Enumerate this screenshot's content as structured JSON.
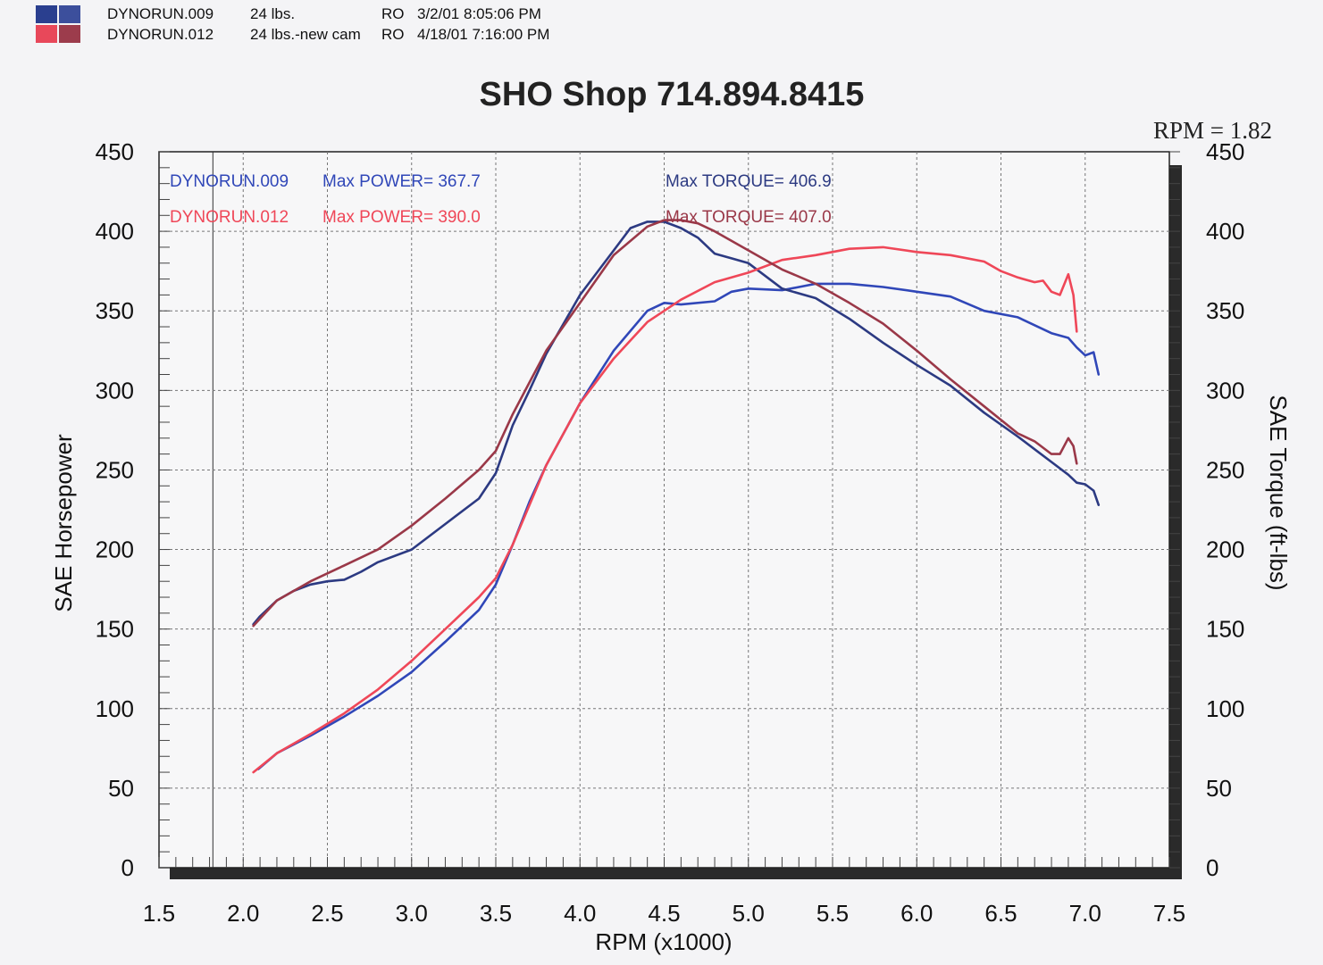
{
  "header": {
    "runs": [
      {
        "name": "DYNORUN.009",
        "desc": "24 lbs.",
        "code": "RO",
        "datetime": "3/2/01 8:05:06 PM",
        "colors": [
          "#2a3f8f",
          "#3c4f9c"
        ]
      },
      {
        "name": "DYNORUN.012",
        "desc": "24 lbs.-new cam",
        "code": "RO",
        "datetime": "4/18/01 7:16:00 PM",
        "colors": [
          "#e8485a",
          "#9c3c4c"
        ]
      }
    ]
  },
  "rpm_ratio": "RPM = 1.82",
  "annotations": {
    "run009_label": "DYNORUN.009",
    "run009_power": "Max POWER= 367.7",
    "run009_torque": "Max TORQUE= 406.9",
    "run012_label": "DYNORUN.012",
    "run012_power": "Max POWER= 390.0",
    "run012_torque": "Max TORQUE= 407.0"
  },
  "colors": {
    "run009_power": "#3047b8",
    "run009_torque": "#2c3a82",
    "run012_power": "#ef4758",
    "run012_torque": "#9a3848"
  },
  "chart_data": {
    "type": "line",
    "title": "SHO Shop 714.894.8415",
    "xlabel": "RPM (x1000)",
    "ylabel": "SAE Horsepower",
    "y2label": "SAE Torque (ft-lbs)",
    "xlim": [
      1.5,
      7.5
    ],
    "ylim": [
      0,
      450
    ],
    "y2lim": [
      0,
      450
    ],
    "xticks": [
      "1.5",
      "2.0",
      "2.5",
      "3.0",
      "3.5",
      "4.0",
      "4.5",
      "5.0",
      "5.5",
      "6.0",
      "6.5",
      "7.0",
      "7.5"
    ],
    "yticks": [
      "0",
      "50",
      "100",
      "150",
      "200",
      "250",
      "300",
      "350",
      "400",
      "450"
    ],
    "grid": true,
    "series": [
      {
        "name": "DYNORUN.009 Power",
        "axis": "left",
        "color": "#3047b8",
        "x": [
          2.09,
          2.2,
          2.4,
          2.6,
          2.8,
          3.0,
          3.2,
          3.4,
          3.5,
          3.6,
          3.7,
          3.8,
          4.0,
          4.2,
          4.4,
          4.5,
          4.6,
          4.8,
          4.9,
          5.0,
          5.2,
          5.4,
          5.6,
          5.8,
          6.0,
          6.2,
          6.4,
          6.6,
          6.8,
          6.9,
          6.95,
          7.0,
          7.05,
          7.08
        ],
        "y": [
          62,
          72,
          83,
          95,
          108,
          123,
          142,
          162,
          178,
          203,
          230,
          253,
          292,
          325,
          350,
          355,
          354,
          356,
          362,
          364,
          363,
          367,
          367,
          365,
          362,
          359,
          350,
          346,
          336,
          333,
          327,
          322,
          324,
          310
        ]
      },
      {
        "name": "DYNORUN.009 Torque",
        "axis": "right",
        "color": "#2c3a82",
        "x": [
          2.06,
          2.1,
          2.2,
          2.3,
          2.4,
          2.5,
          2.6,
          2.7,
          2.8,
          3.0,
          3.2,
          3.4,
          3.5,
          3.6,
          3.7,
          3.8,
          4.0,
          4.2,
          4.3,
          4.4,
          4.5,
          4.6,
          4.7,
          4.8,
          4.9,
          5.0,
          5.2,
          5.4,
          5.6,
          5.8,
          6.0,
          6.2,
          6.4,
          6.6,
          6.8,
          6.9,
          6.95,
          7.0,
          7.05,
          7.08
        ],
        "y": [
          153,
          158,
          168,
          174,
          178,
          180,
          181,
          186,
          192,
          200,
          216,
          232,
          248,
          278,
          300,
          323,
          360,
          388,
          402,
          406,
          406,
          402,
          396,
          386,
          383,
          380,
          364,
          358,
          345,
          330,
          316,
          303,
          286,
          271,
          255,
          247,
          242,
          241,
          237,
          228
        ]
      },
      {
        "name": "DYNORUN.012 Power",
        "axis": "left",
        "color": "#ef4758",
        "x": [
          2.06,
          2.2,
          2.4,
          2.6,
          2.8,
          3.0,
          3.2,
          3.4,
          3.5,
          3.6,
          3.7,
          3.8,
          4.0,
          4.2,
          4.4,
          4.5,
          4.6,
          4.8,
          5.0,
          5.2,
          5.4,
          5.6,
          5.8,
          6.0,
          6.2,
          6.4,
          6.5,
          6.6,
          6.7,
          6.75,
          6.8,
          6.85,
          6.9,
          6.93,
          6.95
        ],
        "y": [
          60,
          72,
          84,
          97,
          112,
          130,
          150,
          170,
          182,
          203,
          228,
          253,
          292,
          320,
          343,
          350,
          357,
          368,
          374,
          382,
          385,
          389,
          390,
          387,
          385,
          381,
          375,
          371,
          368,
          369,
          362,
          360,
          373,
          360,
          337
        ]
      },
      {
        "name": "DYNORUN.012 Torque",
        "axis": "right",
        "color": "#9a3848",
        "x": [
          2.06,
          2.2,
          2.4,
          2.6,
          2.8,
          3.0,
          3.2,
          3.4,
          3.5,
          3.6,
          3.7,
          3.8,
          4.0,
          4.2,
          4.4,
          4.5,
          4.6,
          4.7,
          4.8,
          5.0,
          5.2,
          5.4,
          5.6,
          5.8,
          6.0,
          6.2,
          6.4,
          6.6,
          6.7,
          6.8,
          6.85,
          6.9,
          6.93,
          6.95
        ],
        "y": [
          152,
          168,
          180,
          190,
          200,
          215,
          232,
          250,
          262,
          285,
          305,
          325,
          355,
          385,
          403,
          407,
          407,
          405,
          400,
          388,
          376,
          367,
          355,
          342,
          325,
          307,
          290,
          273,
          268,
          260,
          260,
          270,
          265,
          254
        ]
      }
    ]
  }
}
